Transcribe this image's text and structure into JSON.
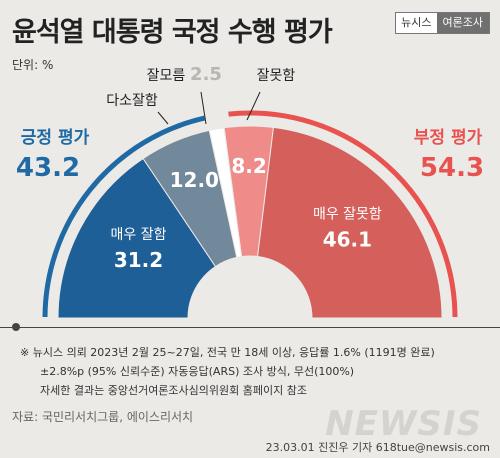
{
  "header": {
    "title": "윤석열 대통령 국정 수행 평가",
    "badge_left": "뉴시스",
    "badge_right": "여론조사"
  },
  "unit": "단위: %",
  "chart_data": {
    "type": "pie",
    "subtype": "semicircle-donut",
    "title": "윤석열 대통령 국정 수행 평가",
    "unit": "%",
    "slices": [
      {
        "label": "매우 잘함",
        "value": 31.2,
        "color": "#1d5f96"
      },
      {
        "label": "다소잘함",
        "value": 12.0,
        "color": "#71899b"
      },
      {
        "label": "잘모름",
        "value": 2.5,
        "color": "#ffffff"
      },
      {
        "label": "잘못함",
        "value": 8.2,
        "color": "#ef8c8a"
      },
      {
        "label": "매우 잘못함",
        "value": 46.1,
        "color": "#d45f5b"
      }
    ],
    "groups": [
      {
        "label": "긍정 평가",
        "value": 43.2,
        "color": "#1f6aa5"
      },
      {
        "label": "부정 평가",
        "value": 54.3,
        "color": "#e8534f"
      }
    ]
  },
  "footer": {
    "note_lines": [
      "※ 뉴시스 의뢰 2023년 2월 25~27일, 전국 만 18세 이상, 응답률 1.6% (1191명 완료)",
      "±2.8%p (95% 신뢰수준) 자동응답(ARS) 조사 방식, 무선(100%)",
      "자세한 결과는 중앙선거여론조사심의위원회 홈페이지 참조"
    ],
    "source": "자료: 국민리서치그룹, 에이스리서치",
    "credit": "23.03.01 진진우 기자 618tue@newsis.com",
    "watermark": "NEWSIS"
  }
}
